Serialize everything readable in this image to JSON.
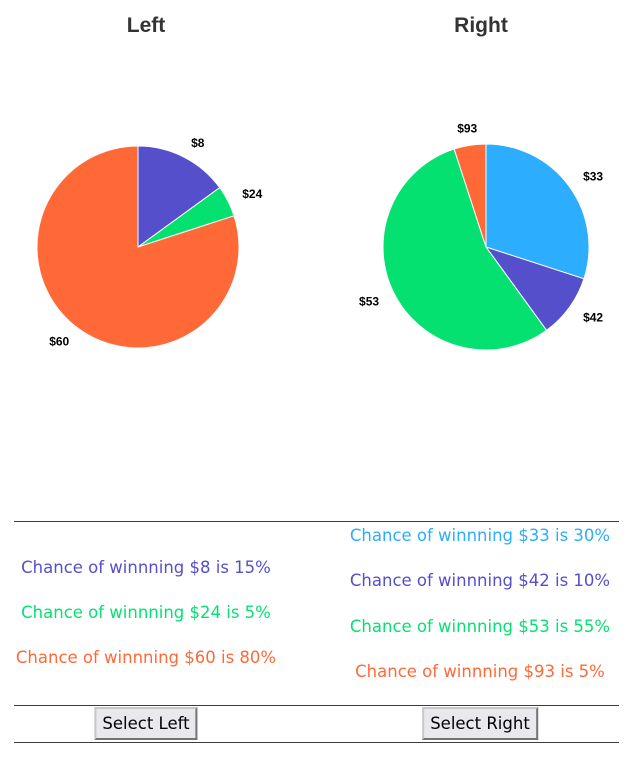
{
  "chart_data": [
    {
      "type": "pie",
      "title": "Left",
      "slices": [
        {
          "label": "$8",
          "value": 15,
          "color": "#554fcc"
        },
        {
          "label": "$24",
          "value": 5,
          "color": "#05e171"
        },
        {
          "label": "$60",
          "value": 80,
          "color": "#ff6937"
        }
      ]
    },
    {
      "type": "pie",
      "title": "Right",
      "slices": [
        {
          "label": "$33",
          "value": 30,
          "color": "#2cadfe"
        },
        {
          "label": "$42",
          "value": 10,
          "color": "#554fcc"
        },
        {
          "label": "$53",
          "value": 55,
          "color": "#05e171"
        },
        {
          "label": "$93",
          "value": 5,
          "color": "#ff6937"
        }
      ]
    }
  ],
  "chances": {
    "left": [
      {
        "text": "Chance of winnning $8 is 15%",
        "color": "#554fcc"
      },
      {
        "text": "Chance of winnning $24 is 5%",
        "color": "#05e171"
      },
      {
        "text": "Chance of winnning $60 is 80%",
        "color": "#ff6937"
      }
    ],
    "right": [
      {
        "text": "Chance of winnning $33 is 30%",
        "color": "#2cadfe"
      },
      {
        "text": "Chance of winnning $42 is 10%",
        "color": "#554fcc"
      },
      {
        "text": "Chance of winnning $53 is 55%",
        "color": "#05e171"
      },
      {
        "text": "Chance of winnning $93 is 5%",
        "color": "#ff6937"
      }
    ]
  },
  "buttons": {
    "select_left": "Select Left",
    "select_right": "Select Right"
  }
}
